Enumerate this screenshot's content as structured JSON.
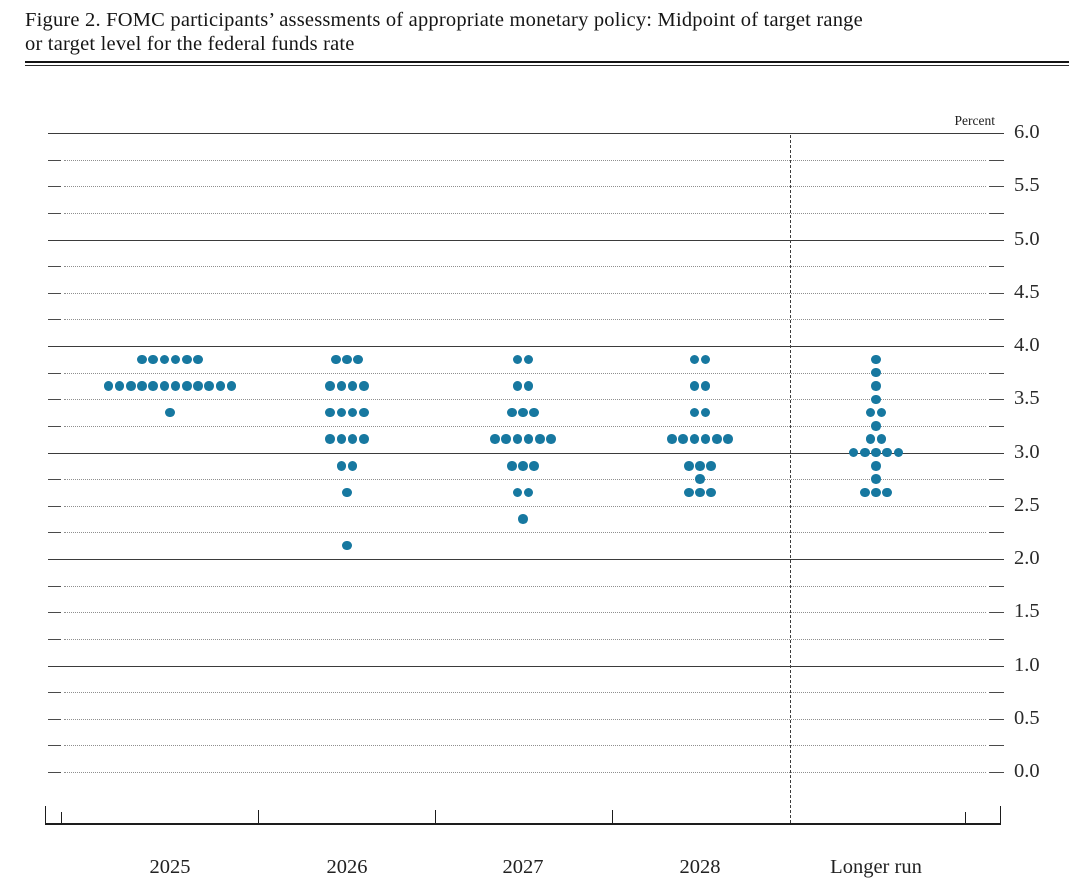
{
  "title": {
    "line1": "Figure 2. FOMC participants’ assessments of appropriate monetary policy: Midpoint of target range",
    "line2": "or target level for the federal funds rate"
  },
  "chart_data": {
    "type": "scatter",
    "subtype": "fomc-dot-plot",
    "title": "Figure 2. FOMC participants’ assessments of appropriate monetary policy: Midpoint of target range or target level for the federal funds rate",
    "ylabel": "Percent",
    "xlabel": "",
    "ylim": [
      0.0,
      6.0
    ],
    "y_tick_step_labels": 0.5,
    "y_grid_step": 0.25,
    "grid": "solid lines at integer percents 1-6, dotted lines at other quarter-percent levels",
    "legend_position": "none",
    "categories": [
      "2025",
      "2026",
      "2027",
      "2028",
      "Longer run"
    ],
    "y_tick_labels": [
      "6.0",
      "5.5",
      "5.0",
      "4.5",
      "4.0",
      "3.5",
      "3.0",
      "2.5",
      "2.0",
      "1.5",
      "1.0",
      "0.5",
      "0.0"
    ],
    "separator": "dashed vertical line between 2028 and Longer run",
    "dot_color": "#1778A0",
    "columns": [
      {
        "label": "2025",
        "dots": [
          {
            "rate": 3.875,
            "count": 6
          },
          {
            "rate": 3.625,
            "count": 12
          },
          {
            "rate": 3.375,
            "count": 1
          }
        ]
      },
      {
        "label": "2026",
        "dots": [
          {
            "rate": 3.875,
            "count": 3
          },
          {
            "rate": 3.625,
            "count": 4
          },
          {
            "rate": 3.375,
            "count": 4
          },
          {
            "rate": 3.125,
            "count": 4
          },
          {
            "rate": 2.875,
            "count": 2
          },
          {
            "rate": 2.625,
            "count": 1
          },
          {
            "rate": 2.125,
            "count": 1
          }
        ]
      },
      {
        "label": "2027",
        "dots": [
          {
            "rate": 3.875,
            "count": 2
          },
          {
            "rate": 3.625,
            "count": 2
          },
          {
            "rate": 3.375,
            "count": 3
          },
          {
            "rate": 3.125,
            "count": 6
          },
          {
            "rate": 2.875,
            "count": 3
          },
          {
            "rate": 2.625,
            "count": 2
          },
          {
            "rate": 2.375,
            "count": 1
          }
        ]
      },
      {
        "label": "2028",
        "dots": [
          {
            "rate": 3.875,
            "count": 2
          },
          {
            "rate": 3.625,
            "count": 2
          },
          {
            "rate": 3.375,
            "count": 2
          },
          {
            "rate": 3.125,
            "count": 6
          },
          {
            "rate": 2.875,
            "count": 3
          },
          {
            "rate": 2.75,
            "count": 1
          },
          {
            "rate": 2.625,
            "count": 3
          }
        ]
      },
      {
        "label": "Longer run",
        "dots": [
          {
            "rate": 3.875,
            "count": 1
          },
          {
            "rate": 3.75,
            "count": 1
          },
          {
            "rate": 3.625,
            "count": 1
          },
          {
            "rate": 3.5,
            "count": 1
          },
          {
            "rate": 3.375,
            "count": 2
          },
          {
            "rate": 3.25,
            "count": 1
          },
          {
            "rate": 3.125,
            "count": 2
          },
          {
            "rate": 3.0,
            "count": 5
          },
          {
            "rate": 2.875,
            "count": 1
          },
          {
            "rate": 2.75,
            "count": 1
          },
          {
            "rate": 2.625,
            "count": 3
          }
        ]
      }
    ]
  }
}
